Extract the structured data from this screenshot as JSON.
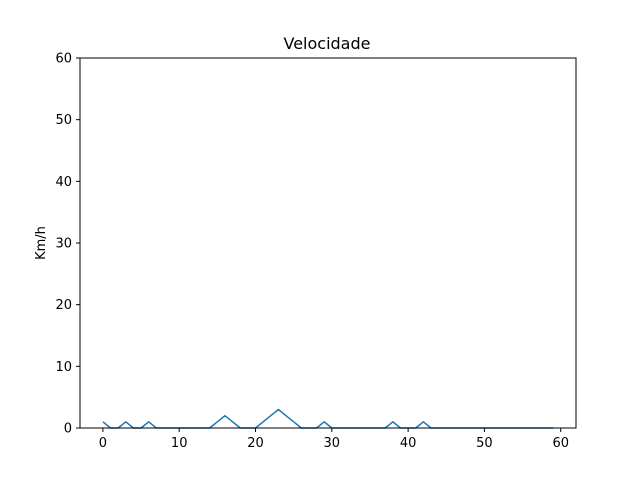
{
  "chart_data": {
    "type": "line",
    "title": "Velocidade",
    "xlabel": "",
    "ylabel": "Km/h",
    "xlim": [
      -3,
      62
    ],
    "ylim": [
      0,
      60
    ],
    "xticks": [
      0,
      10,
      20,
      30,
      40,
      50,
      60
    ],
    "yticks": [
      0,
      10,
      20,
      30,
      40,
      50,
      60
    ],
    "grid": false,
    "legend": "none",
    "series": [
      {
        "color": "#1f77b4",
        "x": [
          0,
          1,
          2,
          3,
          4,
          5,
          6,
          7,
          8,
          9,
          10,
          11,
          12,
          13,
          14,
          15,
          16,
          17,
          18,
          19,
          20,
          21,
          22,
          23,
          24,
          25,
          26,
          27,
          28,
          29,
          30,
          31,
          32,
          33,
          34,
          35,
          36,
          37,
          38,
          39,
          40,
          41,
          42,
          43,
          44,
          45,
          46,
          47,
          48,
          49,
          50,
          51,
          52,
          53,
          54,
          55,
          56,
          57,
          58,
          59
        ],
        "values": [
          1,
          0,
          0,
          1,
          0,
          0,
          1,
          0,
          0,
          0,
          0,
          0,
          0,
          0,
          0,
          1,
          2,
          1,
          0,
          0,
          0,
          1,
          2,
          3,
          2,
          1,
          0,
          0,
          0,
          1,
          0,
          0,
          0,
          0,
          0,
          0,
          0,
          0,
          1,
          0,
          0,
          0,
          1,
          0,
          0,
          0,
          0,
          0,
          0,
          0,
          0,
          0,
          0,
          0,
          0,
          0,
          0,
          0,
          0,
          0
        ]
      }
    ]
  }
}
